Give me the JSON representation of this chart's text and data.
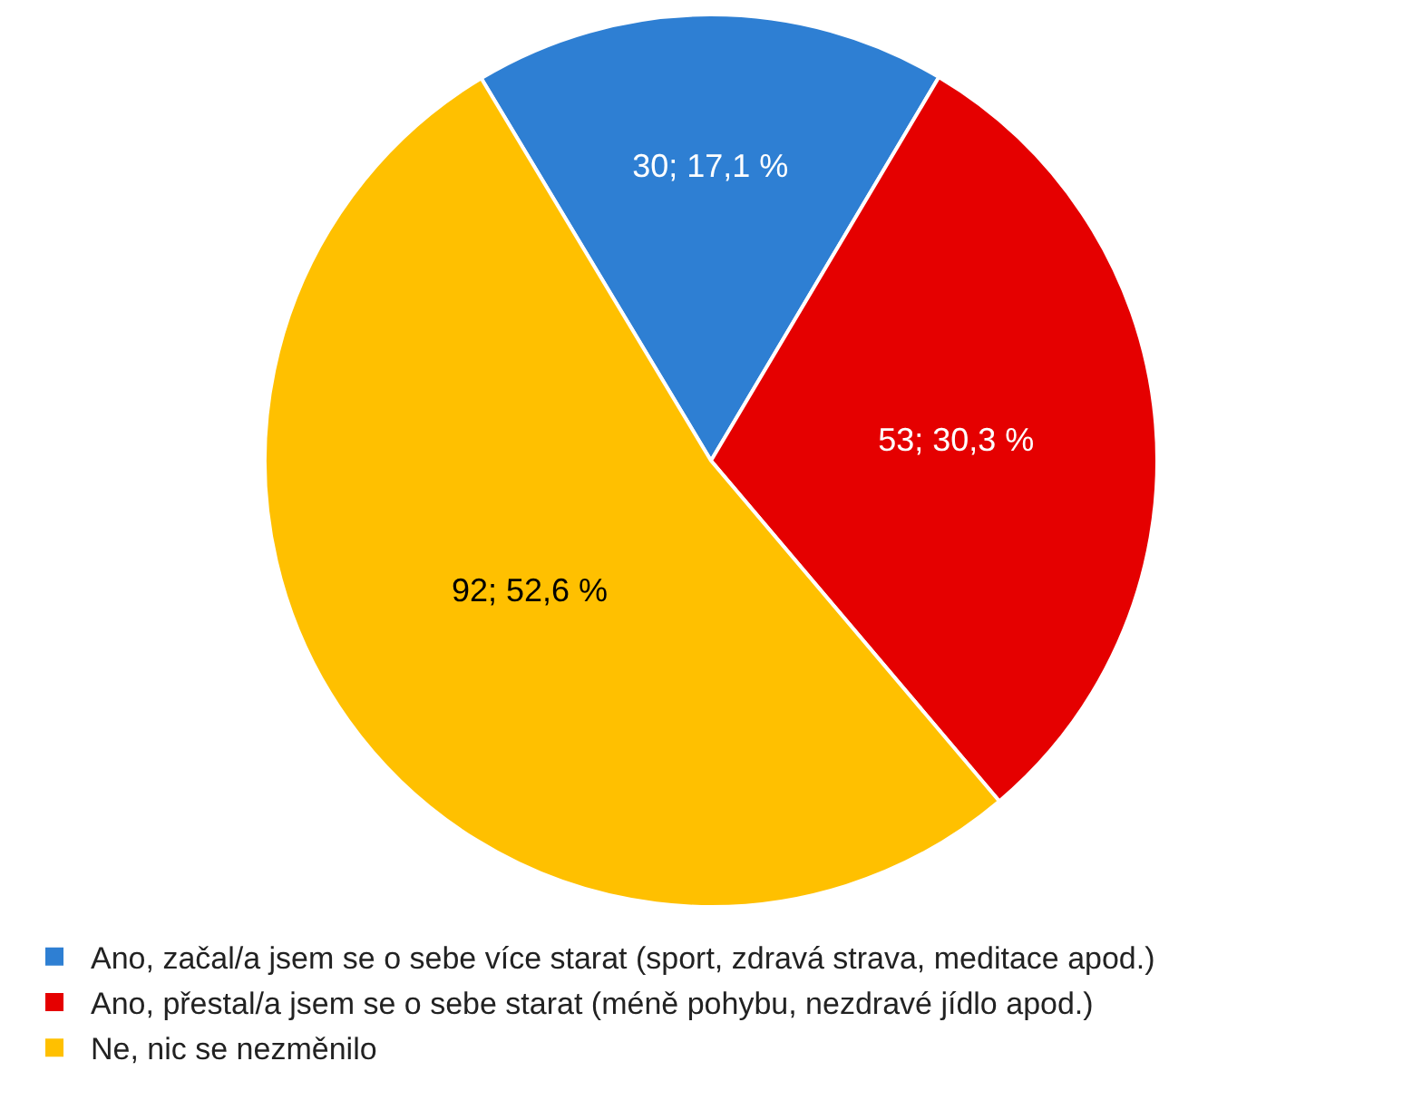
{
  "chart_data": {
    "type": "pie",
    "categories": [
      "Ano, začal/a jsem se o sebe více starat (sport, zdravá strava, meditace apod.)",
      "Ano, přestal/a jsem se o sebe starat (méně pohybu, nezdravé jídlo apod.)",
      "Ne, nic se nezměnilo"
    ],
    "values": [
      30,
      53,
      92
    ],
    "colors": [
      "#2e7fd3",
      "#e50000",
      "#ffc000"
    ],
    "value_labels": [
      "30; 17,1 %",
      "53; 30,3 %",
      "92; 52,6 %"
    ],
    "legend": "bottom"
  }
}
